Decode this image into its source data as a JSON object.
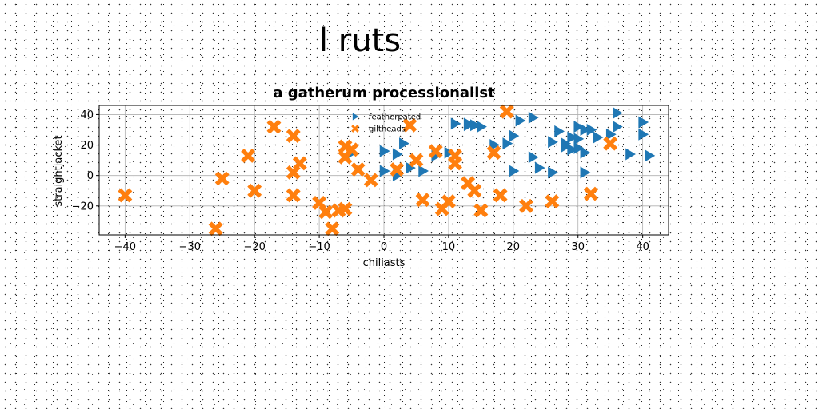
{
  "page": {
    "heading": "l ruts"
  },
  "chart_data": {
    "type": "scatter",
    "title": "a gatherum processionalist",
    "xlabel": "chiliasts",
    "ylabel": "straightjacket",
    "xlim": [
      -44,
      44
    ],
    "ylim": [
      -39,
      46
    ],
    "xticks": [
      -40,
      -30,
      -20,
      -10,
      0,
      10,
      20,
      30,
      40
    ],
    "yticks": [
      -20,
      0,
      20,
      40
    ],
    "grid": true,
    "legend_position": "top-center",
    "series": [
      {
        "name": "featherpated",
        "marker": "triangle-right",
        "color": "#1f77b4",
        "points": [
          [
            -5,
            15
          ],
          [
            0,
            16
          ],
          [
            0,
            3
          ],
          [
            2,
            14
          ],
          [
            2,
            0
          ],
          [
            3,
            21
          ],
          [
            4,
            5
          ],
          [
            6,
            3
          ],
          [
            8,
            13
          ],
          [
            10,
            15
          ],
          [
            11,
            34
          ],
          [
            13,
            34
          ],
          [
            13,
            33
          ],
          [
            14,
            33
          ],
          [
            15,
            32
          ],
          [
            17,
            20
          ],
          [
            19,
            21
          ],
          [
            20,
            26
          ],
          [
            20,
            3
          ],
          [
            21,
            36
          ],
          [
            23,
            12
          ],
          [
            23,
            38
          ],
          [
            24,
            5
          ],
          [
            26,
            2
          ],
          [
            26,
            22
          ],
          [
            27,
            29
          ],
          [
            28,
            21
          ],
          [
            28,
            19
          ],
          [
            29,
            25
          ],
          [
            29,
            17
          ],
          [
            30,
            32
          ],
          [
            30,
            24
          ],
          [
            31,
            15
          ],
          [
            31,
            2
          ],
          [
            31,
            30
          ],
          [
            32,
            30
          ],
          [
            33,
            25
          ],
          [
            35,
            27
          ],
          [
            36,
            41
          ],
          [
            36,
            32
          ],
          [
            38,
            14
          ],
          [
            40,
            35
          ],
          [
            40,
            27
          ],
          [
            41,
            13
          ],
          [
            30,
            18
          ]
        ]
      },
      {
        "name": "giltheads",
        "marker": "x-thick",
        "color": "#ff7f0e",
        "points": [
          [
            -40,
            -13
          ],
          [
            -26,
            -35
          ],
          [
            -25,
            -2
          ],
          [
            -21,
            13
          ],
          [
            -20,
            -10
          ],
          [
            -17,
            32
          ],
          [
            -14,
            26
          ],
          [
            -14,
            2
          ],
          [
            -14,
            -13
          ],
          [
            -13,
            8
          ],
          [
            -10,
            -18
          ],
          [
            -9,
            -24
          ],
          [
            -8,
            -35
          ],
          [
            -7,
            -23
          ],
          [
            -6,
            19
          ],
          [
            -6,
            12
          ],
          [
            -6,
            -22
          ],
          [
            -5,
            17
          ],
          [
            -4,
            4
          ],
          [
            -2,
            -3
          ],
          [
            2,
            4
          ],
          [
            4,
            33
          ],
          [
            5,
            10
          ],
          [
            6,
            -16
          ],
          [
            8,
            16
          ],
          [
            9,
            -22
          ],
          [
            10,
            -17
          ],
          [
            11,
            13
          ],
          [
            11,
            8
          ],
          [
            13,
            -5
          ],
          [
            14,
            -10
          ],
          [
            15,
            -23
          ],
          [
            17,
            15
          ],
          [
            18,
            -13
          ],
          [
            19,
            42
          ],
          [
            22,
            -20
          ],
          [
            26,
            -17
          ],
          [
            32,
            -12
          ],
          [
            35,
            21
          ]
        ]
      }
    ]
  }
}
